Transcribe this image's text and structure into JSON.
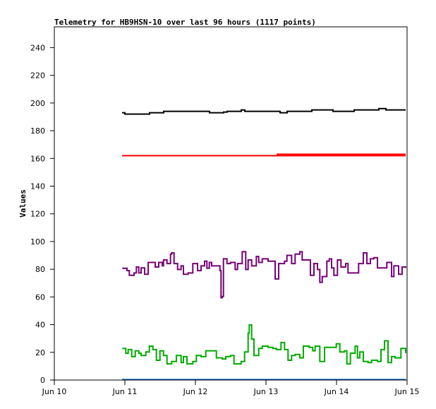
{
  "chart_data": {
    "type": "line",
    "title": "Telemetry for HB9HSN-10 over last 96 hours (1117 points)",
    "xlabel": "",
    "ylabel": "Values",
    "xlim": [
      0,
      5
    ],
    "ylim": [
      0,
      255
    ],
    "x_unit": "days since Jun 10",
    "x_ticks": [
      {
        "v": 0,
        "label": "Jun 10"
      },
      {
        "v": 1,
        "label": "Jun 11"
      },
      {
        "v": 2,
        "label": "Jun 12"
      },
      {
        "v": 3,
        "label": "Jun 13"
      },
      {
        "v": 4,
        "label": "Jun 14"
      },
      {
        "v": 5,
        "label": "Jun 15"
      }
    ],
    "y_ticks": [
      0,
      20,
      40,
      60,
      80,
      100,
      120,
      140,
      160,
      180,
      200,
      220,
      240
    ],
    "grid": false,
    "series": [
      {
        "name": "black",
        "color": "#000000",
        "points": [
          [
            0.96,
            193
          ],
          [
            1.0,
            192
          ],
          [
            1.35,
            193
          ],
          [
            1.55,
            194
          ],
          [
            2.15,
            194
          ],
          [
            2.2,
            193
          ],
          [
            2.4,
            193.5
          ],
          [
            2.45,
            194
          ],
          [
            2.65,
            195
          ],
          [
            2.7,
            194
          ],
          [
            3.15,
            194
          ],
          [
            3.2,
            193
          ],
          [
            3.3,
            194
          ],
          [
            3.65,
            195
          ],
          [
            3.9,
            195
          ],
          [
            3.95,
            194
          ],
          [
            4.15,
            194
          ],
          [
            4.25,
            195
          ],
          [
            4.6,
            196
          ],
          [
            4.7,
            195
          ],
          [
            4.98,
            195
          ]
        ]
      },
      {
        "name": "red",
        "color": "#ff0000",
        "points": [
          [
            0.96,
            162
          ],
          [
            4.98,
            162
          ]
        ]
      },
      {
        "name": "red-upper",
        "color": "#ff0000",
        "points": [
          [
            3.15,
            163
          ],
          [
            4.98,
            163
          ]
        ]
      },
      {
        "name": "purple",
        "color": "#770077",
        "points": [
          [
            0.963,
            80.7
          ],
          [
            1.03,
            79.0
          ],
          [
            1.063,
            75.6
          ],
          [
            1.13,
            77.3
          ],
          [
            1.163,
            81.6
          ],
          [
            1.197,
            77.3
          ],
          [
            1.23,
            81.0
          ],
          [
            1.28,
            76.4
          ],
          [
            1.33,
            84.9
          ],
          [
            1.397,
            84.9
          ],
          [
            1.43,
            81.6
          ],
          [
            1.48,
            84.9
          ],
          [
            1.53,
            82.4
          ],
          [
            1.547,
            86.7
          ],
          [
            1.597,
            84.1
          ],
          [
            1.647,
            90.9
          ],
          [
            1.663,
            91.8
          ],
          [
            1.697,
            84.1
          ],
          [
            1.747,
            79.8
          ],
          [
            1.797,
            82.4
          ],
          [
            1.83,
            76.4
          ],
          [
            1.897,
            77.3
          ],
          [
            1.963,
            84.1
          ],
          [
            2.03,
            79.0
          ],
          [
            2.08,
            82.4
          ],
          [
            2.13,
            85.8
          ],
          [
            2.163,
            80.7
          ],
          [
            2.197,
            84.9
          ],
          [
            2.23,
            82.4
          ],
          [
            2.33,
            82.4
          ],
          [
            2.347,
            79.0
          ],
          [
            2.363,
            59.4
          ],
          [
            2.38,
            60.3
          ],
          [
            2.397,
            87.5
          ],
          [
            2.447,
            84.1
          ],
          [
            2.497,
            84.9
          ],
          [
            2.563,
            79.8
          ],
          [
            2.597,
            84.1
          ],
          [
            2.663,
            92.6
          ],
          [
            2.713,
            79.8
          ],
          [
            2.747,
            86.7
          ],
          [
            2.797,
            82.4
          ],
          [
            2.863,
            89.2
          ],
          [
            2.897,
            84.9
          ],
          [
            2.947,
            87.5
          ],
          [
            3.03,
            85.8
          ],
          [
            3.13,
            73.0
          ],
          [
            3.18,
            84.1
          ],
          [
            3.263,
            85.8
          ],
          [
            3.297,
            90.0
          ],
          [
            3.363,
            84.1
          ],
          [
            3.413,
            90.9
          ],
          [
            3.48,
            92.6
          ],
          [
            3.513,
            86.7
          ],
          [
            3.58,
            86.7
          ],
          [
            3.63,
            75.6
          ],
          [
            3.68,
            84.1
          ],
          [
            3.73,
            79.8
          ],
          [
            3.763,
            70.5
          ],
          [
            3.797,
            74.7
          ],
          [
            3.863,
            85.8
          ],
          [
            3.897,
            87.5
          ],
          [
            3.93,
            81.0
          ],
          [
            3.963,
            75.6
          ],
          [
            4.013,
            86.7
          ],
          [
            4.063,
            81.6
          ],
          [
            4.13,
            84.1
          ],
          [
            4.163,
            77.3
          ],
          [
            4.263,
            77.3
          ],
          [
            4.313,
            84.1
          ],
          [
            4.38,
            91.8
          ],
          [
            4.43,
            84.1
          ],
          [
            4.48,
            87.5
          ],
          [
            4.53,
            88.4
          ],
          [
            4.58,
            81.0
          ],
          [
            4.647,
            81.0
          ],
          [
            4.713,
            84.9
          ],
          [
            4.78,
            74.7
          ],
          [
            4.813,
            82.4
          ],
          [
            4.88,
            76.4
          ],
          [
            4.93,
            81.6
          ],
          [
            4.98,
            81.0
          ]
        ]
      },
      {
        "name": "green",
        "color": "#00aa00",
        "points": [
          [
            0.963,
            22.8
          ],
          [
            1.013,
            19.4
          ],
          [
            1.047,
            22.0
          ],
          [
            1.097,
            16.9
          ],
          [
            1.147,
            21.1
          ],
          [
            1.197,
            19.4
          ],
          [
            1.23,
            17.7
          ],
          [
            1.297,
            20.3
          ],
          [
            1.347,
            24.5
          ],
          [
            1.397,
            22.0
          ],
          [
            1.447,
            14.3
          ],
          [
            1.497,
            21.1
          ],
          [
            1.547,
            17.7
          ],
          [
            1.597,
            11.7
          ],
          [
            1.663,
            13.4
          ],
          [
            1.73,
            17.7
          ],
          [
            1.797,
            12.6
          ],
          [
            1.83,
            16.9
          ],
          [
            1.88,
            11.7
          ],
          [
            1.963,
            13.4
          ],
          [
            2.013,
            17.7
          ],
          [
            2.08,
            16.9
          ],
          [
            2.147,
            21.1
          ],
          [
            2.197,
            21.1
          ],
          [
            2.297,
            16.0
          ],
          [
            2.38,
            15.2
          ],
          [
            2.43,
            16.9
          ],
          [
            2.497,
            17.7
          ],
          [
            2.547,
            11.7
          ],
          [
            2.647,
            13.4
          ],
          [
            2.697,
            20.3
          ],
          [
            2.747,
            33.9
          ],
          [
            2.763,
            39.8
          ],
          [
            2.797,
            29.6
          ],
          [
            2.83,
            17.7
          ],
          [
            2.897,
            22.8
          ],
          [
            2.947,
            24.5
          ],
          [
            3.03,
            23.6
          ],
          [
            3.097,
            22.8
          ],
          [
            3.147,
            22.0
          ],
          [
            3.213,
            27.1
          ],
          [
            3.263,
            22.0
          ],
          [
            3.313,
            14.3
          ],
          [
            3.363,
            17.7
          ],
          [
            3.413,
            18.5
          ],
          [
            3.48,
            16.0
          ],
          [
            3.53,
            24.5
          ],
          [
            3.613,
            23.6
          ],
          [
            3.663,
            21.1
          ],
          [
            3.697,
            24.5
          ],
          [
            3.763,
            13.4
          ],
          [
            3.83,
            23.6
          ],
          [
            3.93,
            23.6
          ],
          [
            3.997,
            26.2
          ],
          [
            4.047,
            20.3
          ],
          [
            4.113,
            21.1
          ],
          [
            4.147,
            11.7
          ],
          [
            4.197,
            19.4
          ],
          [
            4.263,
            24.5
          ],
          [
            4.297,
            16.0
          ],
          [
            4.33,
            20.3
          ],
          [
            4.38,
            13.4
          ],
          [
            4.447,
            12.6
          ],
          [
            4.497,
            14.3
          ],
          [
            4.58,
            13.4
          ],
          [
            4.63,
            22.0
          ],
          [
            4.68,
            28.3
          ],
          [
            4.73,
            12.6
          ],
          [
            4.78,
            16.9
          ],
          [
            4.83,
            16.0
          ],
          [
            4.913,
            22.8
          ],
          [
            4.98,
            19.4
          ]
        ]
      },
      {
        "name": "blue",
        "color": "#0066cc",
        "points": [
          [
            0.96,
            0.3
          ],
          [
            4.98,
            0.3
          ]
        ]
      }
    ]
  }
}
